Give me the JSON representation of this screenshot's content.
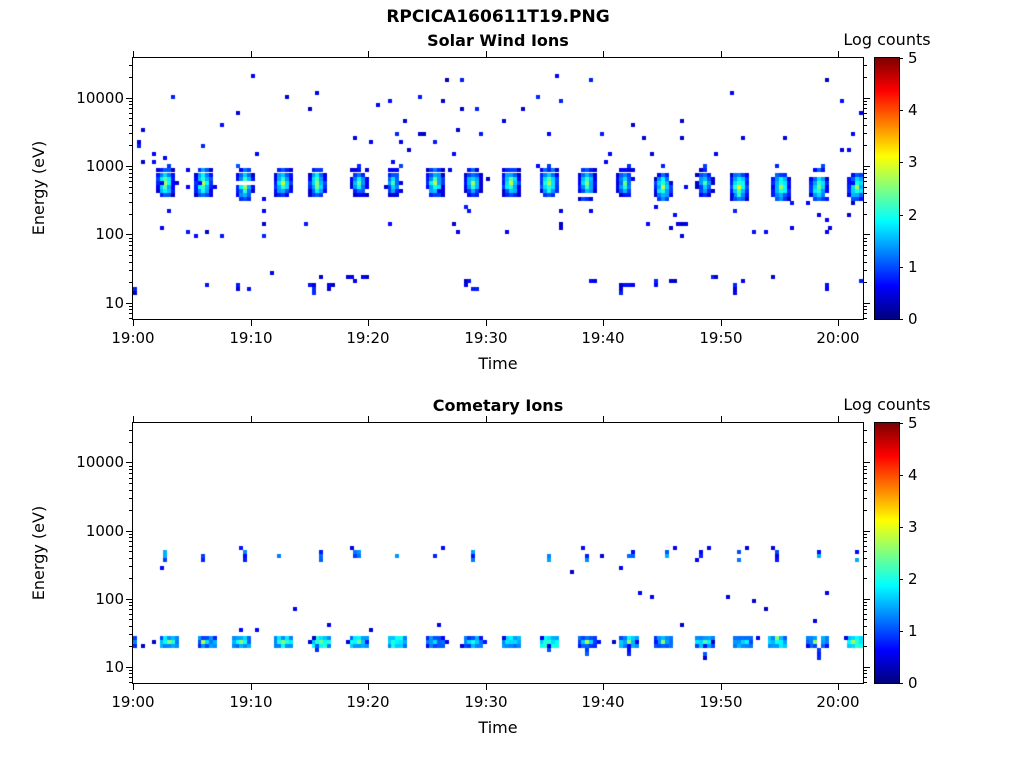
{
  "figure": {
    "title": "RPCICA160611T19.PNG",
    "background": "#ffffff"
  },
  "colorbar": {
    "title": "Log counts",
    "ticks": [
      0,
      1,
      2,
      3,
      4,
      5
    ],
    "min": 0,
    "max": 5,
    "colormap": "jet",
    "top_color": "#8b0000",
    "bottom_color": "#00008b"
  },
  "time_axis": {
    "label": "Time",
    "tick_labels": [
      "19:00",
      "19:10",
      "19:20",
      "19:30",
      "19:40",
      "19:50",
      "20:00"
    ],
    "tick_minutes": [
      0,
      10,
      20,
      30,
      40,
      50,
      60
    ],
    "range_minutes": [
      0,
      62.1
    ]
  },
  "energy_axis": {
    "label": "Energy (eV)",
    "tick_labels": [
      "10",
      "100",
      "1000",
      "10000"
    ],
    "tick_values": [
      10,
      100,
      1000,
      10000
    ],
    "range_ev": [
      5.8,
      38000
    ],
    "scale": "log"
  },
  "chart_data": [
    {
      "type": "heatmap",
      "panel": "solar-wind",
      "title": "Solar Wind Ions",
      "value_units": "log10 counts",
      "value_range": [
        0,
        5
      ],
      "sweep_times_min": [
        2.7,
        5.96,
        9.22,
        12.48,
        15.74,
        19.0,
        22.26,
        25.52,
        28.78,
        32.04,
        35.3,
        38.56,
        41.82,
        45.08,
        48.34,
        51.6,
        54.86,
        58.12,
        61.38
      ],
      "beam": {
        "energy_center_ev": 550,
        "energy_spread_decades": 0.2,
        "peak_log_counts": 2.6
      },
      "upper_marks": {
        "energy_ev": 1050,
        "log_counts": 0.9,
        "probability": 0.75
      },
      "low_band": {
        "energy_range_ev": [
          17,
          30
        ],
        "log_counts_range": [
          0.3,
          0.85
        ],
        "streak_probability": 0.3
      },
      "background_scatter": {
        "count": 115,
        "energy_range_ev": [
          100,
          28000
        ],
        "log_counts_range": [
          0.3,
          0.8
        ]
      },
      "edge_cluster": {
        "count": 7,
        "time_range_min": [
          0,
          2.5
        ],
        "energy_range_ev": [
          1100,
          3200
        ]
      },
      "seed": 20160611
    },
    {
      "type": "heatmap",
      "panel": "cometary",
      "title": "Cometary Ions",
      "value_units": "log10 counts",
      "value_range": [
        0,
        5
      ],
      "sweep_times_min": [
        2.7,
        5.96,
        9.22,
        12.48,
        15.74,
        19.0,
        22.26,
        25.52,
        28.78,
        32.04,
        35.3,
        38.56,
        41.82,
        45.08,
        48.34,
        51.6,
        54.86,
        58.12,
        61.38
      ],
      "band_500ev": {
        "energy_center_ev": 500,
        "log_counts_range": [
          0.5,
          1.5
        ],
        "probability": 0.92
      },
      "low_band": {
        "energy_center_ev": 25,
        "peak_log_counts": 2.2,
        "green_cell_log_counts": 2.6,
        "streak_probability": 0.5
      },
      "background_scatter": {
        "count": 16,
        "energy_range_ev": [
          40,
          700
        ],
        "log_counts_range": [
          0.3,
          0.7
        ]
      },
      "seed": 607
    }
  ]
}
